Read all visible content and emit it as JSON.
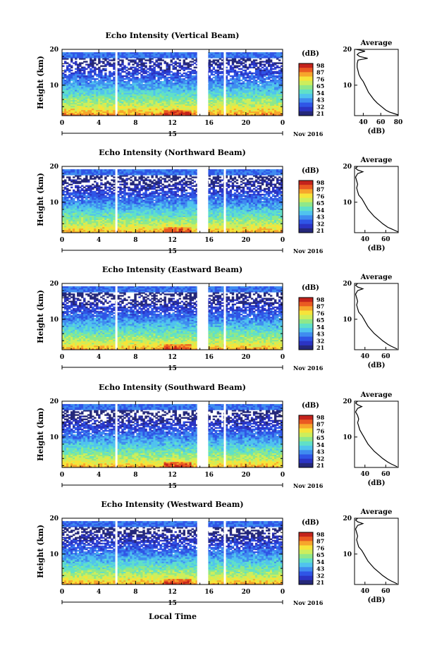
{
  "figure": {
    "xlabel": "Local Time",
    "date_label": "Nov 2016",
    "day_label": "15"
  },
  "colorbar": {
    "unit": "(dB)",
    "ticks": [
      "98",
      "87",
      "76",
      "65",
      "54",
      "43",
      "32",
      "21"
    ],
    "colors": [
      "#25287a",
      "#2b34c4",
      "#2f55e6",
      "#3f8cf0",
      "#50c3ee",
      "#60e0c8",
      "#8fe88a",
      "#cdee5c",
      "#f6e43a",
      "#f7a52c",
      "#ea5a22",
      "#c4231c"
    ]
  },
  "chart_data": [
    {
      "type": "heatmap",
      "title": "Echo Intensity (Vertical Beam)",
      "ylabel": "Height (km)",
      "x": {
        "min": 0,
        "max": 24,
        "ticks": [
          "0",
          "4",
          "8",
          "12",
          "16",
          "20",
          "0"
        ]
      },
      "y": {
        "min": 1.5,
        "max": 20,
        "ticks": [
          "10",
          "20"
        ]
      },
      "color_range": [
        21,
        98
      ],
      "missing_time_bands_hours": [
        [
          5.8,
          5.95
        ],
        [
          14.7,
          15.9
        ],
        [
          17.6,
          17.75
        ]
      ],
      "profile": {
        "title": "Average",
        "xlabel": "(dB)",
        "xticks": [
          "40",
          "60",
          "80"
        ],
        "xlim": [
          30,
          80
        ],
        "yticks": [
          "10",
          "20"
        ],
        "height_km": [
          1.7,
          2.5,
          3,
          4,
          5,
          6,
          7,
          8,
          9,
          10,
          11,
          12,
          13,
          14,
          15,
          16,
          17,
          17.5,
          18,
          18.5,
          19,
          19.5,
          20
        ],
        "mean_db": [
          80,
          70,
          66,
          61,
          56,
          52,
          49,
          46,
          44,
          42,
          40,
          37,
          35,
          34,
          33,
          33,
          34,
          45,
          36,
          33,
          35,
          42,
          32
        ]
      }
    },
    {
      "type": "heatmap",
      "title": "Echo Intensity (Northward Beam)",
      "ylabel": "Height (km)",
      "x": {
        "min": 0,
        "max": 24,
        "ticks": [
          "0",
          "4",
          "8",
          "12",
          "16",
          "20",
          "0"
        ]
      },
      "y": {
        "min": 1.5,
        "max": 20,
        "ticks": [
          "10",
          "20"
        ]
      },
      "color_range": [
        21,
        98
      ],
      "missing_time_bands_hours": [
        [
          5.8,
          5.95
        ],
        [
          14.7,
          15.9
        ],
        [
          17.6,
          17.75
        ]
      ],
      "profile": {
        "title": "Average",
        "xlabel": "(dB)",
        "xticks": [
          "40",
          "60"
        ],
        "xlim": [
          30,
          72
        ],
        "yticks": [
          "10",
          "20"
        ],
        "height_km": [
          1.7,
          2.5,
          3,
          4,
          5,
          6,
          7,
          8,
          9,
          10,
          11,
          12,
          13,
          14,
          15,
          16,
          17,
          18,
          18.5,
          19,
          19.5,
          20
        ],
        "mean_db": [
          72,
          66,
          62,
          57,
          53,
          49,
          46,
          43,
          41,
          39,
          37,
          34,
          33,
          32,
          33,
          32,
          31,
          33,
          38,
          33,
          31,
          33
        ]
      }
    },
    {
      "type": "heatmap",
      "title": "Echo Intensity (Eastward Beam)",
      "ylabel": "Height (km)",
      "x": {
        "min": 0,
        "max": 24,
        "ticks": [
          "0",
          "4",
          "8",
          "12",
          "16",
          "20",
          "0"
        ]
      },
      "y": {
        "min": 1.5,
        "max": 20,
        "ticks": [
          "10",
          "20"
        ]
      },
      "color_range": [
        21,
        98
      ],
      "missing_time_bands_hours": [
        [
          5.8,
          5.95
        ],
        [
          14.7,
          15.9
        ],
        [
          17.6,
          17.75
        ]
      ],
      "profile": {
        "title": "Average",
        "xlabel": "(dB)",
        "xticks": [
          "40",
          "60"
        ],
        "xlim": [
          30,
          72
        ],
        "yticks": [
          "10",
          "20"
        ],
        "height_km": [
          1.7,
          2.5,
          3,
          4,
          5,
          6,
          7,
          8,
          9,
          10,
          11,
          12,
          13,
          14,
          15,
          16,
          17,
          18,
          18.5,
          19,
          19.5,
          20
        ],
        "mean_db": [
          71,
          65,
          62,
          57,
          53,
          49,
          46,
          43,
          41,
          39,
          37,
          34,
          33,
          32,
          33,
          32,
          31,
          33,
          38,
          33,
          31,
          33
        ]
      }
    },
    {
      "type": "heatmap",
      "title": "Echo Intensity (Southward Beam)",
      "ylabel": "Height (km)",
      "x": {
        "min": 0,
        "max": 24,
        "ticks": [
          "0",
          "4",
          "8",
          "12",
          "16",
          "20",
          "0"
        ]
      },
      "y": {
        "min": 1.5,
        "max": 20,
        "ticks": [
          "10",
          "20"
        ]
      },
      "color_range": [
        21,
        98
      ],
      "missing_time_bands_hours": [
        [
          5.8,
          5.95
        ],
        [
          14.7,
          15.9
        ],
        [
          17.6,
          17.75
        ]
      ],
      "profile": {
        "title": "Average",
        "xlabel": "(dB)",
        "xticks": [
          "40",
          "60"
        ],
        "xlim": [
          30,
          72
        ],
        "yticks": [
          "10",
          "20"
        ],
        "height_km": [
          1.7,
          2.5,
          3,
          4,
          5,
          6,
          7,
          8,
          9,
          10,
          11,
          12,
          13,
          14,
          15,
          16,
          17,
          18,
          18.5,
          19,
          19.5,
          20
        ],
        "mean_db": [
          71,
          65,
          62,
          57,
          53,
          49,
          46,
          43,
          41,
          39,
          37,
          35,
          34,
          33,
          34,
          33,
          31,
          33,
          37,
          33,
          31,
          33
        ]
      }
    },
    {
      "type": "heatmap",
      "title": "Echo Intensity (Westward Beam)",
      "ylabel": "Height (km)",
      "x": {
        "min": 0,
        "max": 24,
        "ticks": [
          "0",
          "4",
          "8",
          "12",
          "16",
          "20",
          "0"
        ]
      },
      "y": {
        "min": 1.5,
        "max": 20,
        "ticks": [
          "10",
          "20"
        ]
      },
      "color_range": [
        21,
        98
      ],
      "missing_time_bands_hours": [
        [
          5.8,
          5.95
        ],
        [
          14.7,
          15.9
        ],
        [
          17.6,
          17.75
        ]
      ],
      "profile": {
        "title": "Average",
        "xlabel": "(dB)",
        "xticks": [
          "40",
          "60"
        ],
        "xlim": [
          30,
          72
        ],
        "yticks": [
          "10",
          "20"
        ],
        "height_km": [
          1.7,
          2.5,
          3,
          4,
          5,
          6,
          7,
          8,
          9,
          10,
          11,
          12,
          13,
          14,
          15,
          16,
          17,
          18,
          18.5,
          19,
          19.5,
          20
        ],
        "mean_db": [
          71,
          65,
          62,
          57,
          53,
          49,
          46,
          43,
          41,
          39,
          37,
          34,
          33,
          32,
          33,
          32,
          31,
          33,
          38,
          33,
          31,
          33
        ]
      }
    }
  ]
}
